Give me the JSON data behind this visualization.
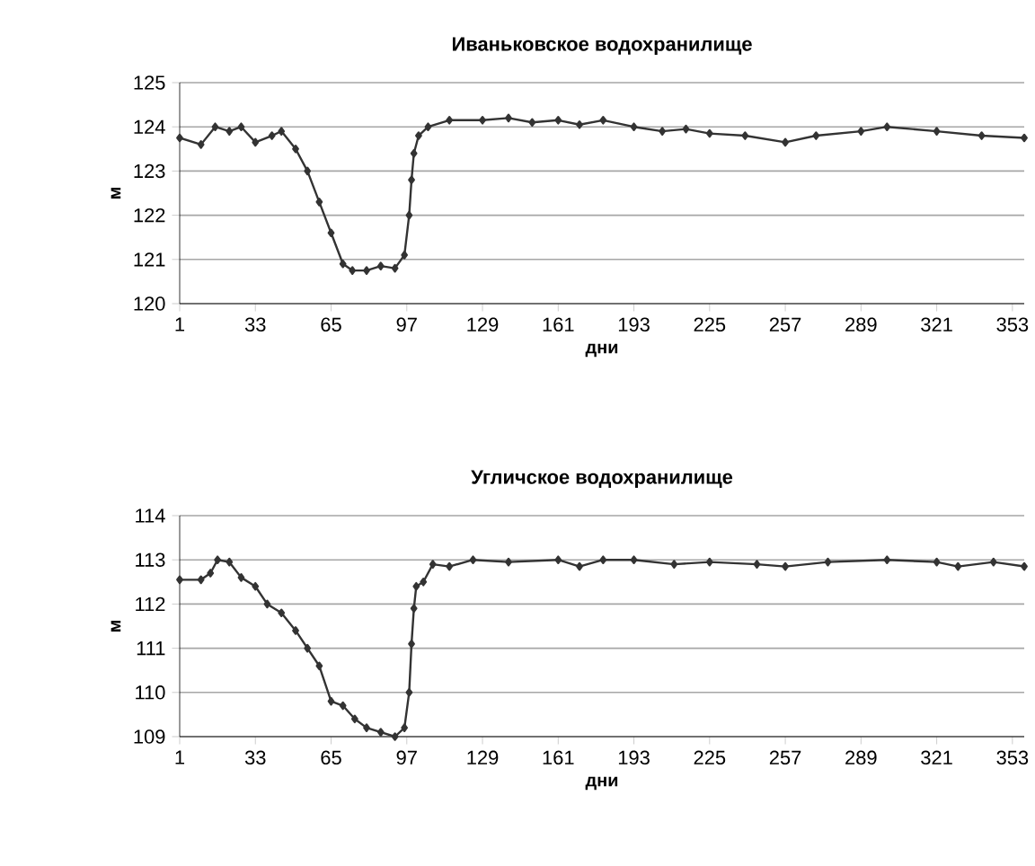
{
  "chart_data": [
    {
      "type": "line",
      "title": "Иваньковское водохранилище",
      "xlabel": "дни",
      "ylabel": "м",
      "xlim": [
        1,
        358
      ],
      "ylim": [
        120,
        125
      ],
      "xticks": [
        1,
        33,
        65,
        97,
        129,
        161,
        193,
        225,
        257,
        289,
        321,
        353
      ],
      "yticks": [
        120,
        121,
        122,
        123,
        124,
        125
      ],
      "grid": "y",
      "marker": "diamond",
      "line_style": "solid",
      "x": [
        1,
        10,
        16,
        22,
        27,
        33,
        40,
        44,
        50,
        55,
        60,
        65,
        70,
        74,
        80,
        86,
        92,
        96,
        98,
        99,
        100,
        102,
        106,
        115,
        129,
        140,
        150,
        161,
        170,
        180,
        193,
        205,
        215,
        225,
        240,
        257,
        270,
        289,
        300,
        321,
        340,
        358
      ],
      "series": [
        {
          "color": "#333333",
          "values": [
            123.75,
            123.6,
            124.0,
            123.9,
            124.0,
            123.65,
            123.8,
            123.9,
            123.5,
            123.0,
            122.3,
            121.6,
            120.9,
            120.75,
            120.75,
            120.85,
            120.8,
            121.1,
            122.0,
            122.8,
            123.4,
            123.8,
            124.0,
            124.15,
            124.15,
            124.2,
            124.1,
            124.15,
            124.05,
            124.15,
            124.0,
            123.9,
            123.95,
            123.85,
            123.8,
            123.65,
            123.8,
            123.9,
            124.0,
            123.9,
            123.8,
            123.75
          ]
        }
      ]
    },
    {
      "type": "line",
      "title": "Угличское водохранилище",
      "xlabel": "дни",
      "ylabel": "м",
      "xlim": [
        1,
        358
      ],
      "ylim": [
        109,
        114
      ],
      "xticks": [
        1,
        33,
        65,
        97,
        129,
        161,
        193,
        225,
        257,
        289,
        321,
        353
      ],
      "yticks": [
        109,
        110,
        111,
        112,
        113,
        114
      ],
      "grid": "y",
      "marker": "diamond",
      "line_style": "solid",
      "x": [
        1,
        10,
        14,
        17,
        22,
        27,
        33,
        38,
        44,
        50,
        55,
        60,
        65,
        70,
        75,
        80,
        86,
        92,
        96,
        98,
        99,
        100,
        101,
        104,
        108,
        115,
        125,
        140,
        161,
        170,
        180,
        193,
        210,
        225,
        245,
        257,
        275,
        300,
        321,
        330,
        345,
        358
      ],
      "series": [
        {
          "color": "#333333",
          "values": [
            112.55,
            112.55,
            112.7,
            113.0,
            112.95,
            112.6,
            112.4,
            112.0,
            111.8,
            111.4,
            111.0,
            110.6,
            109.8,
            109.7,
            109.4,
            109.2,
            109.1,
            109.0,
            109.2,
            110.0,
            111.1,
            111.9,
            112.4,
            112.5,
            112.9,
            112.85,
            113.0,
            112.95,
            113.0,
            112.85,
            113.0,
            113.0,
            112.9,
            112.95,
            112.9,
            112.85,
            112.95,
            113.0,
            112.95,
            112.85,
            112.95,
            112.85
          ]
        }
      ]
    }
  ]
}
